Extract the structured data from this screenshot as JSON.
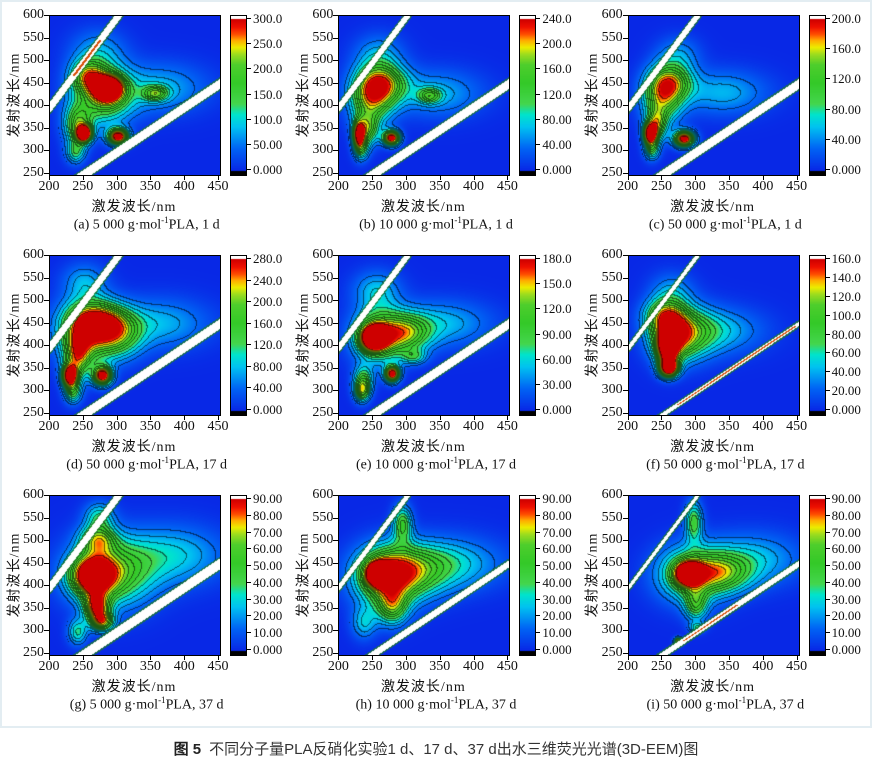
{
  "page": {
    "figure_caption": {
      "label": "图 5",
      "text": "不同分子量PLA反硝化实验1 d、17 d、37 d出水三维荧光光谱(3D-EEM)图"
    }
  },
  "chart_data": {
    "type": "heatmap",
    "subtype": "3D-EEM fluorescence contour grid, 3 x 3 panels",
    "axes": {
      "x_label": "激发波长/nm",
      "y_label": "发射波长/nm",
      "x_range": [
        200,
        450
      ],
      "y_range": [
        250,
        600
      ],
      "x_ticks": [
        "200",
        "250",
        "300",
        "350",
        "400",
        "450"
      ],
      "y_ticks": [
        "600",
        "550",
        "500",
        "450",
        "400",
        "350",
        "300",
        "250"
      ]
    },
    "colormap": {
      "stops": [
        [
          0.0,
          "#0828E6"
        ],
        [
          0.15,
          "#0066F5"
        ],
        [
          0.29,
          "#00C3F0"
        ],
        [
          0.37,
          "#00E4CC"
        ],
        [
          0.44,
          "#44D64E"
        ],
        [
          0.58,
          "#34C928"
        ],
        [
          0.7,
          "#4ECE2C"
        ],
        [
          0.77,
          "#9EDC1E"
        ],
        [
          0.815,
          "#EDED00"
        ],
        [
          0.86,
          "#FFAE00"
        ],
        [
          0.9,
          "#FF5000"
        ],
        [
          0.95,
          "#EE0F00"
        ],
        [
          1.0,
          "#CE0000"
        ]
      ],
      "over_color": "#FFFFFF",
      "under_color": "#000000"
    },
    "scatter_band_style": {
      "fill": "#FFFFFF",
      "edge": "#1E7A24",
      "warm_core": "#D8500A"
    },
    "peak_format": [
      "excitation_nm",
      "emission_nm",
      "amplitude",
      "sigma_ex_nm",
      "sigma_em_nm"
    ],
    "panels": [
      {
        "id": "a",
        "caption_pre": "(a) 5 000 g·mol",
        "caption_sup": "-1",
        "caption_post": "PLA, 1 d",
        "scale_max": 300,
        "colorbar_ticks": [
          "300.0",
          "250.0",
          "200.0",
          "150.0",
          "100.0",
          "50.00",
          "0.000"
        ],
        "peaks": [
          [
            250,
            340,
            315,
            8,
            13
          ],
          [
            300,
            334,
            320,
            11,
            13
          ],
          [
            287,
            441,
            262,
            15,
            20
          ],
          [
            277,
            425,
            205,
            30,
            42
          ],
          [
            240,
            360,
            180,
            14,
            30
          ],
          [
            237,
            300,
            120,
            10,
            18
          ],
          [
            255,
            468,
            170,
            17,
            24
          ],
          [
            355,
            430,
            150,
            13,
            12
          ],
          [
            362,
            442,
            80,
            48,
            38
          ],
          [
            270,
            520,
            75,
            28,
            35
          ]
        ],
        "bands": {
          "r1": 11,
          "r2": 12,
          "r2_core": [
            468,
            548
          ]
        }
      },
      {
        "id": "b",
        "caption_pre": "(b) 10 000 g·mol",
        "caption_sup": "-1",
        "caption_post": "PLA, 1 d",
        "scale_max": 240,
        "colorbar_ticks": [
          "240.0",
          "200.0",
          "160.0",
          "120.0",
          "80.00",
          "40.00",
          "0.000"
        ],
        "peaks": [
          [
            277,
            331,
            252,
            9,
            12
          ],
          [
            228,
            338,
            205,
            6,
            20
          ],
          [
            247,
            420,
            168,
            22,
            40
          ],
          [
            265,
            452,
            150,
            25,
            30
          ],
          [
            240,
            350,
            140,
            12,
            25
          ],
          [
            232,
            305,
            95,
            8,
            18
          ],
          [
            333,
            425,
            105,
            12,
            12
          ],
          [
            345,
            430,
            62,
            46,
            36
          ],
          [
            258,
            515,
            58,
            25,
            32
          ]
        ],
        "bands": {
          "r1": 11,
          "r2": 10
        }
      },
      {
        "id": "c",
        "caption_pre": "(c) 50 000 g·mol",
        "caption_sup": "-1",
        "caption_post": "PLA, 1 d",
        "scale_max": 200,
        "colorbar_ticks": [
          "200.0",
          "160.0",
          "120.0",
          "80.00",
          "40.00",
          "0.000"
        ],
        "peaks": [
          [
            230,
            340,
            210,
            7,
            16
          ],
          [
            281,
            329,
            212,
            11,
            13
          ],
          [
            248,
            420,
            130,
            20,
            40
          ],
          [
            262,
            455,
            112,
            22,
            28
          ],
          [
            240,
            360,
            115,
            10,
            25
          ],
          [
            233,
            305,
            90,
            8,
            16
          ],
          [
            338,
            432,
            54,
            46,
            34
          ],
          [
            272,
            515,
            44,
            22,
            28
          ]
        ],
        "bands": {
          "r1": 11,
          "r2": 10
        }
      },
      {
        "id": "d",
        "caption_pre": "(d) 50 000 g·mol",
        "caption_sup": "-1",
        "caption_post": "PLA, 17 d",
        "scale_max": 280,
        "colorbar_ticks": [
          "280.0",
          "240.0",
          "200.0",
          "160.0",
          "120.0",
          "80.00",
          "40.00",
          "0.000"
        ],
        "peaks": [
          [
            228,
            336,
            290,
            8,
            17
          ],
          [
            277,
            336,
            292,
            10,
            15
          ],
          [
            252,
            430,
            192,
            28,
            48
          ],
          [
            270,
            458,
            172,
            30,
            30
          ],
          [
            240,
            380,
            165,
            13,
            35
          ],
          [
            233,
            300,
            130,
            9,
            18
          ],
          [
            300,
            425,
            142,
            25,
            35
          ],
          [
            362,
            452,
            76,
            50,
            38
          ],
          [
            250,
            545,
            68,
            22,
            28
          ]
        ],
        "bands": {
          "r1": 11,
          "r2": 12
        }
      },
      {
        "id": "e",
        "caption_pre": "(e) 10 000 g·mol",
        "caption_sup": "-1",
        "caption_post": "PLA, 17 d",
        "scale_max": 180,
        "colorbar_ticks": [
          "180.0",
          "150.0",
          "120.0",
          "90.00",
          "60.00",
          "30.00",
          "0.000"
        ],
        "peaks": [
          [
            250,
            420,
            172,
            14,
            20
          ],
          [
            278,
            340,
            185,
            8,
            13
          ],
          [
            258,
            425,
            126,
            26,
            40
          ],
          [
            235,
            325,
            96,
            10,
            22
          ],
          [
            233,
            300,
            90,
            8,
            16
          ],
          [
            300,
            430,
            100,
            25,
            30
          ],
          [
            310,
            378,
            58,
            13,
            12
          ],
          [
            352,
            452,
            50,
            50,
            35
          ],
          [
            255,
            525,
            52,
            24,
            30
          ]
        ],
        "bands": {
          "r1": 11,
          "r2": 10
        }
      },
      {
        "id": "f",
        "caption_pre": "(f) 50 000 g·mol",
        "caption_sup": "-1",
        "caption_post": "PLA, 17 d",
        "scale_max": 160,
        "colorbar_ticks": [
          "160.0",
          "140.0",
          "120.0",
          "100.0",
          "80.00",
          "60.00",
          "40.00",
          "20.00",
          "0.000"
        ],
        "peaks": [
          [
            258,
            352,
            168,
            10,
            14
          ],
          [
            256,
            395,
            138,
            11,
            25
          ],
          [
            262,
            425,
            102,
            22,
            38
          ],
          [
            285,
            432,
            76,
            30,
            40
          ],
          [
            250,
            470,
            80,
            20,
            25
          ],
          [
            332,
            436,
            44,
            46,
            35
          ],
          [
            262,
            520,
            38,
            22,
            30
          ]
        ],
        "bands": {
          "r1": 5,
          "r2": 7,
          "r1_core": [
            270,
            445
          ]
        }
      },
      {
        "id": "g",
        "caption_pre": "(g) 5 000 g·mol",
        "caption_sup": "-1",
        "caption_post": "PLA, 37 d",
        "scale_max": 90,
        "colorbar_ticks": [
          "90.00",
          "80.00",
          "70.00",
          "60.00",
          "50.00",
          "40.00",
          "30.00",
          "20.00",
          "10.00",
          "0.000"
        ],
        "peaks": [
          [
            262,
            425,
            89,
            22,
            30
          ],
          [
            268,
            355,
            72,
            13,
            22
          ],
          [
            277,
            322,
            60,
            12,
            15
          ],
          [
            290,
            432,
            58,
            42,
            52
          ],
          [
            270,
            505,
            52,
            18,
            22
          ],
          [
            272,
            556,
            32,
            15,
            22
          ],
          [
            240,
            300,
            35,
            10,
            20
          ],
          [
            382,
            470,
            28,
            52,
            45
          ]
        ],
        "bands": {
          "r1": 12,
          "r2": 12
        }
      },
      {
        "id": "h",
        "caption_pre": "(h) 10 000 g·mol",
        "caption_sup": "-1",
        "caption_post": "PLA, 37 d",
        "scale_max": 90,
        "colorbar_ticks": [
          "90.00",
          "80.00",
          "70.00",
          "60.00",
          "50.00",
          "40.00",
          "30.00",
          "20.00",
          "10.00",
          "0.000"
        ],
        "peaks": [
          [
            257,
            430,
            89,
            12,
            17
          ],
          [
            268,
            422,
            62,
            32,
            45
          ],
          [
            278,
            355,
            48,
            16,
            28
          ],
          [
            293,
            540,
            48,
            10,
            28
          ],
          [
            300,
            432,
            45,
            40,
            40
          ],
          [
            236,
            320,
            26,
            13,
            25
          ],
          [
            360,
            452,
            30,
            55,
            40
          ]
        ],
        "bands": {
          "r1": 8,
          "r2": 8
        }
      },
      {
        "id": "i",
        "caption_pre": "(i) 50 000 g·mol",
        "caption_sup": "-1",
        "caption_post": "PLA, 37 d",
        "scale_max": 90,
        "colorbar_ticks": [
          "90.00",
          "80.00",
          "70.00",
          "60.00",
          "50.00",
          "40.00",
          "30.00",
          "20.00",
          "10.00",
          "0.000"
        ],
        "peaks": [
          [
            287,
            430,
            84,
            14,
            18
          ],
          [
            293,
            428,
            58,
            35,
            42
          ],
          [
            298,
            360,
            42,
            12,
            25
          ],
          [
            295,
            545,
            46,
            9,
            30
          ],
          [
            272,
            279,
            88,
            4,
            6
          ],
          [
            300,
            310,
            30,
            8,
            8
          ],
          [
            340,
            430,
            40,
            30,
            30
          ],
          [
            382,
            462,
            26,
            50,
            40
          ]
        ],
        "bands": {
          "r1": 7,
          "r2": 6,
          "r1_core": [
            280,
            360
          ]
        }
      }
    ]
  }
}
